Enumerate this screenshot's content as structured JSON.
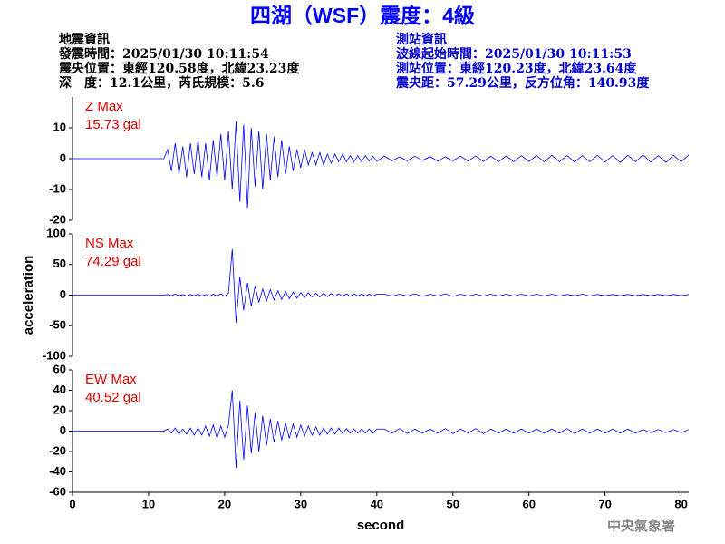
{
  "header": {
    "title": "四湖（WSF）震度：4級",
    "left_info": [
      "地震資訊",
      "發震時間：2025/01/30 10:11:54",
      "震央位置：東經120.58度，北緯23.23度",
      "深　度：12.1公里，芮氏規模：5.6"
    ],
    "right_info": [
      "測站資訊",
      "波線起始時間：2025/01/30 10:11:53",
      "測站位置：東經120.23度，北緯23.64度",
      "震央距：57.29公里，反方位角：140.93度"
    ]
  },
  "footer": "中央氣象署",
  "chart_data": [
    {
      "type": "line",
      "annotations": [
        "Z Max",
        "15.73 gal"
      ],
      "color": "#0000ff",
      "xlim": [
        0,
        81
      ],
      "ylim": [
        -20,
        20
      ],
      "yticks": [
        -20,
        -10,
        0,
        10
      ],
      "x": [
        0,
        12,
        12.5,
        13,
        13.5,
        14,
        14.5,
        15,
        15.5,
        16,
        16.5,
        17,
        17.5,
        18,
        18.5,
        19,
        19.5,
        20,
        20.5,
        21,
        21.5,
        22,
        22.5,
        23,
        23.5,
        24,
        24.5,
        25,
        25.5,
        26,
        26.5,
        27,
        27.5,
        28,
        28.5,
        29,
        29.5,
        30,
        30.5,
        31,
        31.5,
        32,
        32.5,
        33,
        33.5,
        34,
        34.5,
        35,
        35.5,
        36,
        36.5,
        37,
        37.5,
        38,
        38.5,
        39,
        39.5,
        40,
        41,
        42,
        43,
        44,
        45,
        46,
        47,
        48,
        49,
        50,
        51,
        52,
        53,
        54,
        55,
        56,
        57,
        58,
        59,
        60,
        61,
        62,
        63,
        64,
        65,
        66,
        67,
        68,
        69,
        70,
        71,
        72,
        73,
        74,
        75,
        76,
        77,
        78,
        79,
        80,
        81
      ],
      "values": [
        0,
        0,
        3,
        -4,
        5,
        -5,
        4,
        -6,
        5,
        -5,
        6,
        -6,
        5,
        -7,
        6,
        -6,
        8,
        -7,
        9,
        -10,
        12,
        -14,
        11,
        -16,
        10,
        -9,
        9,
        -10,
        8,
        -7,
        7,
        -6,
        6,
        -5,
        4,
        -4,
        3,
        -3,
        3,
        -2,
        2,
        -2,
        2,
        -2,
        1.5,
        -1.5,
        1.5,
        -1,
        1.5,
        -1,
        1,
        -1,
        1,
        -1,
        1,
        -0.8,
        0.8,
        -0.8,
        0.8,
        -0.7,
        0.6,
        -0.7,
        0.8,
        -0.6,
        0.7,
        -0.8,
        0.6,
        -0.7,
        0.8,
        -0.8,
        0.9,
        -0.9,
        0.8,
        -1,
        0.9,
        -1,
        1,
        -0.9,
        1,
        -1,
        1.1,
        -1,
        1,
        -1.1,
        1,
        -1,
        1.1,
        -1.1,
        1,
        -1.2,
        1.1,
        -1,
        1.2,
        -1.1,
        1,
        -1.2,
        1.1,
        -1,
        1.2
      ]
    },
    {
      "type": "line",
      "annotations": [
        "NS Max",
        "74.29 gal"
      ],
      "ylabel": "acceleration",
      "color": "#0000ff",
      "xlim": [
        0,
        81
      ],
      "ylim": [
        -100,
        100
      ],
      "yticks": [
        -100,
        -50,
        0,
        50,
        100
      ],
      "x": [
        0,
        12,
        12.5,
        13,
        13.5,
        14,
        14.5,
        15,
        15.5,
        16,
        16.5,
        17,
        17.5,
        18,
        18.5,
        19,
        19.5,
        20,
        20.5,
        21,
        21.5,
        22,
        22.5,
        23,
        23.5,
        24,
        24.5,
        25,
        25.5,
        26,
        26.5,
        27,
        27.5,
        28,
        28.5,
        29,
        29.5,
        30,
        30.5,
        31,
        31.5,
        32,
        32.5,
        33,
        33.5,
        34,
        34.5,
        35,
        35.5,
        36,
        36.5,
        37,
        37.5,
        38,
        38.5,
        39,
        39.5,
        40,
        41,
        42,
        43,
        44,
        45,
        46,
        47,
        48,
        49,
        50,
        51,
        52,
        53,
        54,
        55,
        56,
        57,
        58,
        59,
        60,
        61,
        62,
        63,
        64,
        65,
        66,
        67,
        68,
        69,
        70,
        71,
        72,
        73,
        74,
        75,
        76,
        77,
        78,
        79,
        80,
        81
      ],
      "values": [
        0,
        0,
        1,
        -1,
        1.5,
        -1,
        1,
        -1.5,
        1,
        -1,
        1.5,
        -1.5,
        1,
        -2,
        1.5,
        -1.5,
        2,
        -2,
        3,
        75,
        -45,
        30,
        -25,
        20,
        -18,
        15,
        -12,
        10,
        -10,
        9,
        -8,
        7,
        -7,
        6,
        -6,
        5,
        -5,
        4,
        -4,
        4,
        -3,
        3,
        -3,
        3,
        -2.5,
        2.5,
        -2,
        2,
        -2,
        2,
        -2,
        2,
        -1.5,
        1.5,
        -1.5,
        1.5,
        -1.5,
        1.5,
        1.5,
        -1.5,
        1.5,
        -1.5,
        2,
        -2,
        1.5,
        -1.5,
        2,
        -2,
        1.5,
        -1.5,
        1.5,
        -1.5,
        1.5,
        -1.5,
        1.5,
        -1.5,
        1.5,
        -1.5,
        1.5,
        -1.5,
        1.5,
        -1.5,
        1,
        -1,
        1.5,
        -1.5,
        1,
        -1,
        1,
        -1,
        1,
        -1,
        1,
        -1,
        1,
        -1,
        1,
        -1,
        1
      ]
    },
    {
      "type": "line",
      "annotations": [
        "EW Max",
        "40.52 gal"
      ],
      "xlabel": "second",
      "color": "#0000ff",
      "xlim": [
        0,
        81
      ],
      "xticks": [
        0,
        10,
        20,
        30,
        40,
        50,
        60,
        70,
        80
      ],
      "ylim": [
        -60,
        60
      ],
      "yticks": [
        -60,
        -40,
        -20,
        0,
        20,
        40,
        60
      ],
      "x": [
        0,
        12,
        12.5,
        13,
        13.5,
        14,
        14.5,
        15,
        15.5,
        16,
        16.5,
        17,
        17.5,
        18,
        18.5,
        19,
        19.5,
        20,
        20.5,
        21,
        21.5,
        22,
        22.5,
        23,
        23.5,
        24,
        24.5,
        25,
        25.5,
        26,
        26.5,
        27,
        27.5,
        28,
        28.5,
        29,
        29.5,
        30,
        30.5,
        31,
        31.5,
        32,
        32.5,
        33,
        33.5,
        34,
        34.5,
        35,
        35.5,
        36,
        36.5,
        37,
        37.5,
        38,
        38.5,
        39,
        39.5,
        40,
        41,
        42,
        43,
        44,
        45,
        46,
        47,
        48,
        49,
        50,
        51,
        52,
        53,
        54,
        55,
        56,
        57,
        58,
        59,
        60,
        61,
        62,
        63,
        64,
        65,
        66,
        67,
        68,
        69,
        70,
        71,
        72,
        73,
        74,
        75,
        76,
        77,
        78,
        79,
        80,
        81
      ],
      "values": [
        0,
        0,
        2,
        -2,
        3,
        -3,
        2,
        -3,
        3,
        -4,
        3,
        -4,
        5,
        -5,
        6,
        -7,
        5,
        -6,
        6,
        40,
        -36,
        30,
        -28,
        25,
        -22,
        18,
        -20,
        15,
        -14,
        12,
        -11,
        10,
        -9,
        8,
        -7,
        7,
        -6,
        6,
        -5,
        5,
        -4,
        4,
        -4,
        3,
        -3,
        3,
        -3,
        3,
        -2.5,
        2.5,
        -2,
        2,
        -2,
        2,
        -2,
        2,
        -2,
        2,
        2,
        -2,
        2.5,
        -2.5,
        2,
        -2,
        2,
        -2,
        2.5,
        -2.5,
        2,
        -2,
        2.5,
        -2.5,
        2,
        -2,
        2,
        -2,
        2,
        -2,
        2,
        -2,
        2,
        -2,
        2.5,
        -2.5,
        2,
        -2,
        2,
        -2,
        2,
        -2,
        2,
        -2,
        1.5,
        -1.5,
        1.5,
        -1.5,
        1.5,
        -1.5,
        1.5
      ]
    }
  ]
}
